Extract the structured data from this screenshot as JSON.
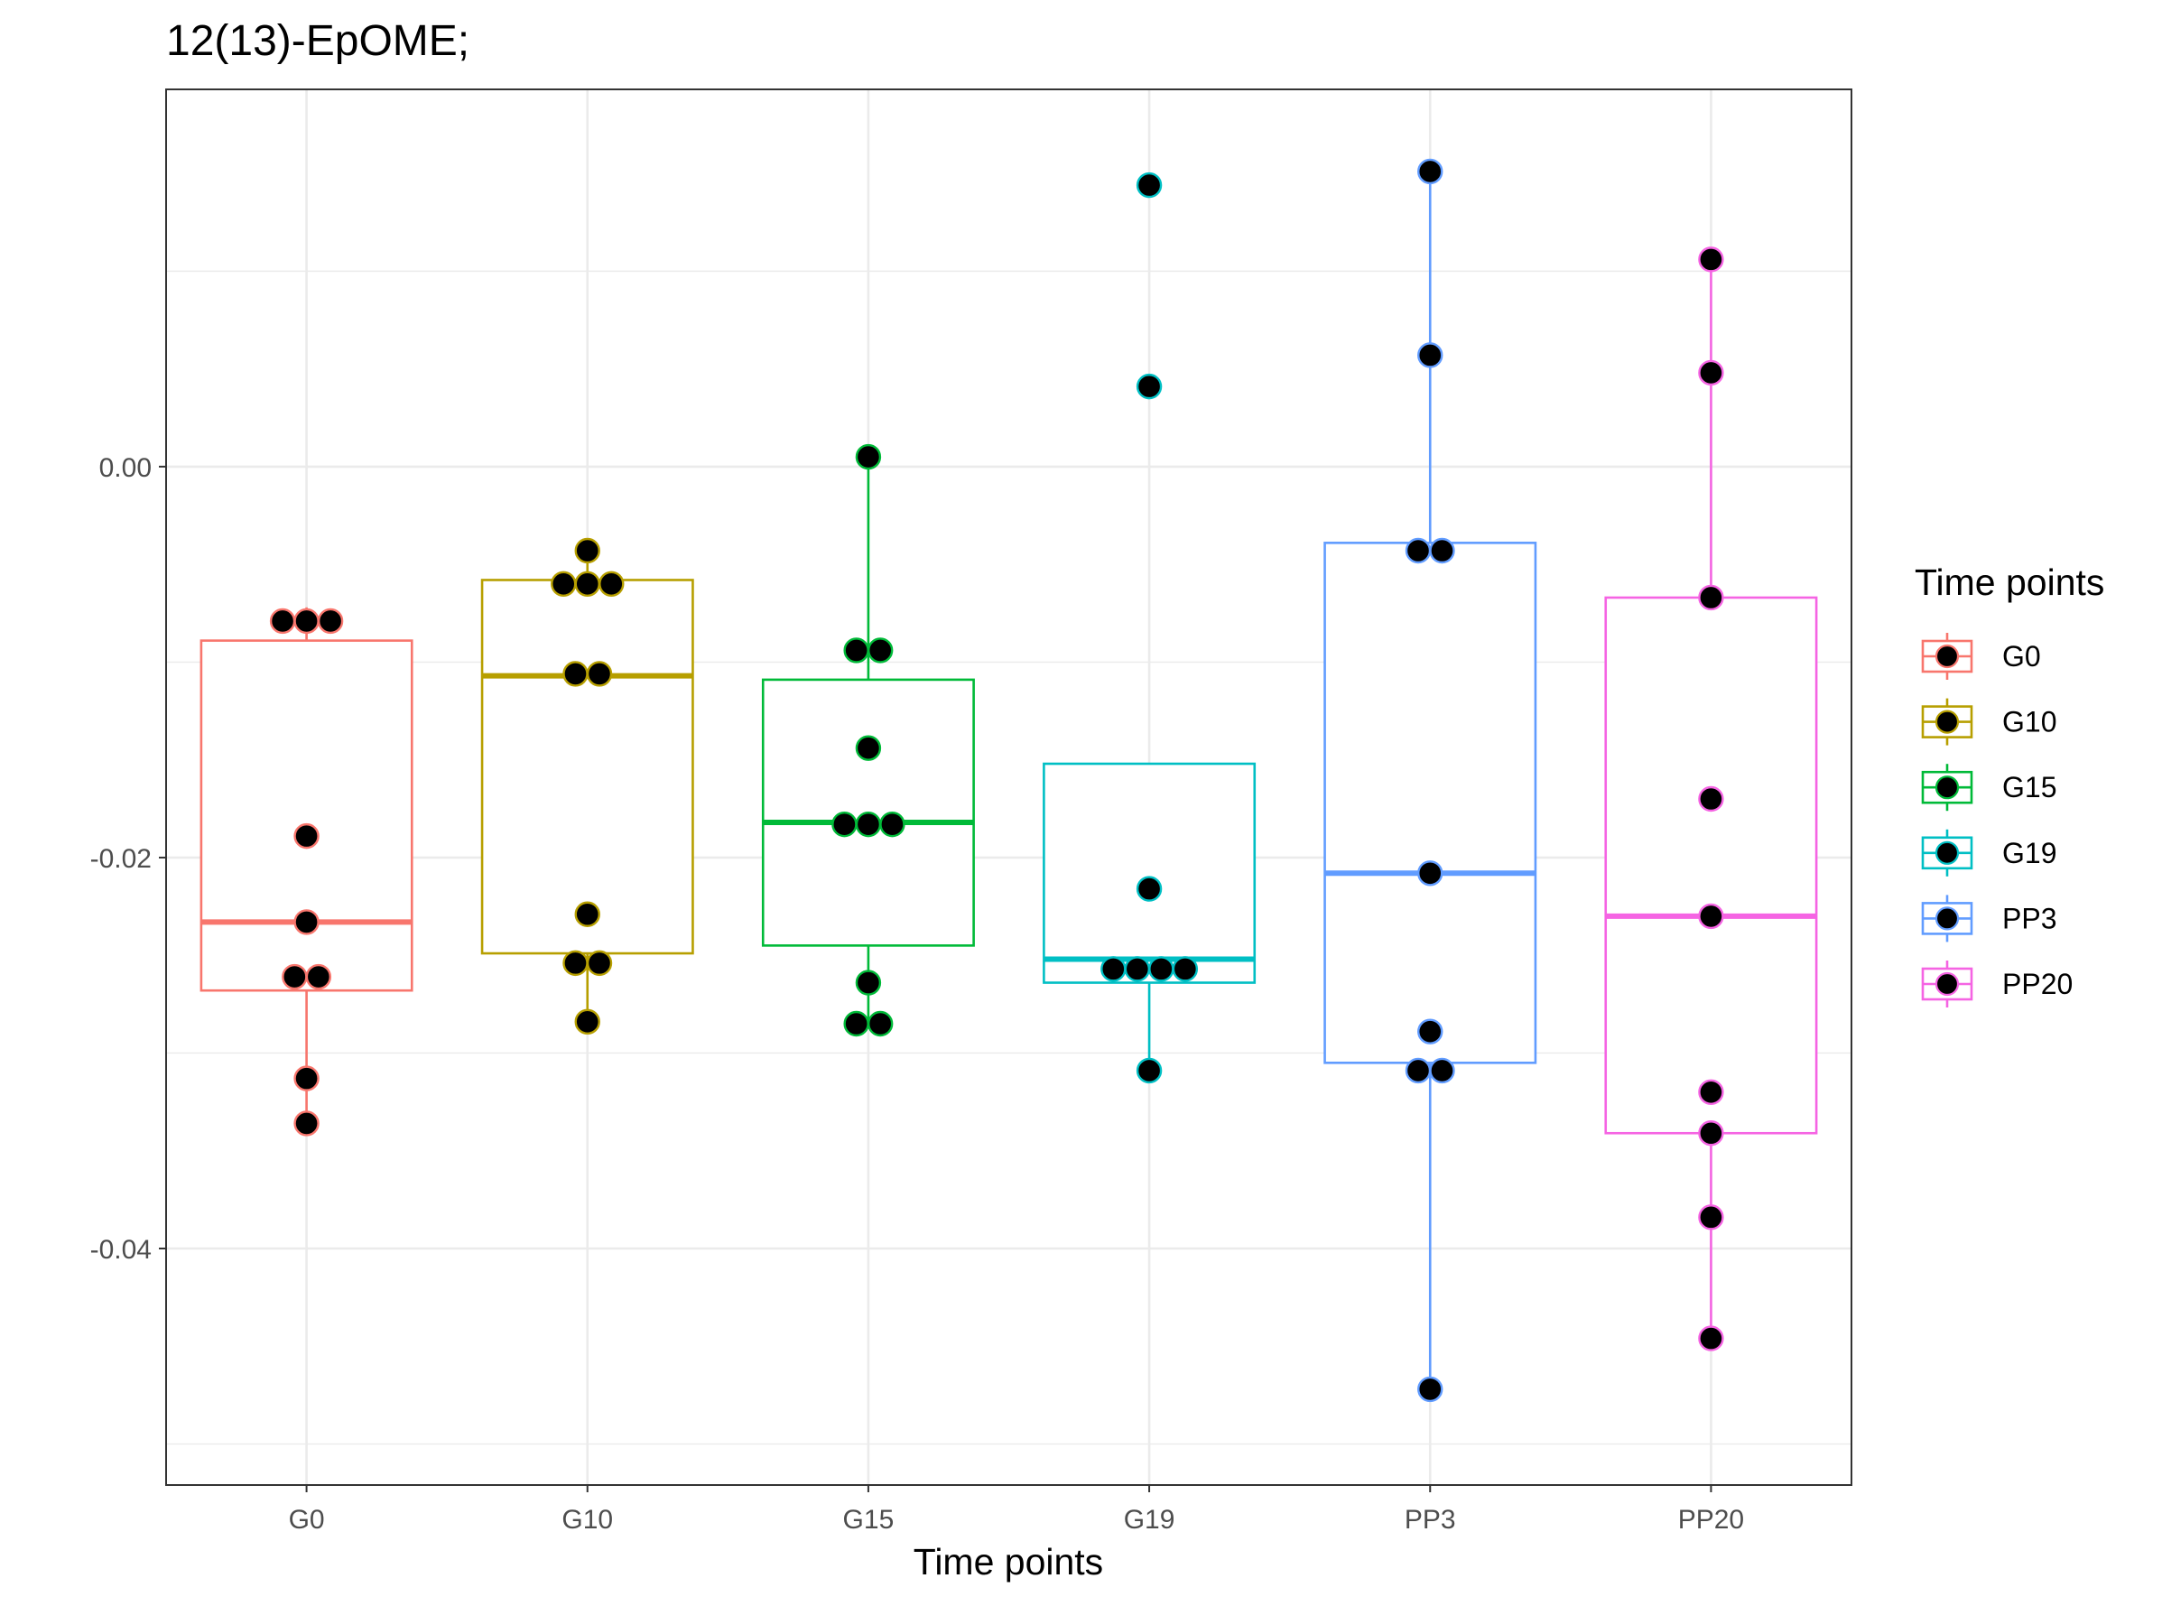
{
  "chart_data": {
    "type": "box",
    "title": "12(13)-EpOME;",
    "xlabel": "Time points",
    "ylabel": "",
    "categories": [
      "G0",
      "G10",
      "G15",
      "G19",
      "PP3",
      "PP20"
    ],
    "ylim": [
      -0.0521,
      0.0193
    ],
    "yticks": [
      0.0,
      -0.02,
      -0.04
    ],
    "ytick_labels": [
      "0.00",
      "-0.02",
      "-0.04"
    ],
    "grid": true,
    "legend": {
      "title": "Time points",
      "position": "right",
      "entries": [
        "G0",
        "G10",
        "G15",
        "G19",
        "PP3",
        "PP20"
      ]
    },
    "colors": {
      "G0": "#F8766D",
      "G10": "#B79F00",
      "G15": "#00BA38",
      "G19": "#00BFC4",
      "PP3": "#619CFF",
      "PP20": "#F564E3"
    },
    "point_color": "#000000",
    "boxes": [
      {
        "category": "G0",
        "whisker_low": -0.0336,
        "q1": -0.0268,
        "median": -0.0233,
        "q3": -0.0089,
        "whisker_high": -0.0072
      },
      {
        "category": "G10",
        "whisker_low": -0.0284,
        "q1": -0.0249,
        "median": -0.0107,
        "q3": -0.0058,
        "whisker_high": -0.0043
      },
      {
        "category": "G15",
        "whisker_low": -0.0285,
        "q1": -0.0245,
        "median": -0.0182,
        "q3": -0.0109,
        "whisker_high": 0.0005
      },
      {
        "category": "G19",
        "whisker_low": -0.0309,
        "q1": -0.0264,
        "median": -0.0252,
        "q3": -0.0152,
        "whisker_high": -0.0152
      },
      {
        "category": "PP3",
        "whisker_low": -0.0472,
        "q1": -0.0305,
        "median": -0.0208,
        "q3": -0.0039,
        "whisker_high": 0.0151
      },
      {
        "category": "PP20",
        "whisker_low": -0.0446,
        "q1": -0.0341,
        "median": -0.023,
        "q3": -0.0067,
        "whisker_high": 0.0106
      }
    ],
    "points": [
      {
        "category": "G0",
        "values": [
          -0.0079,
          -0.0079,
          -0.0079,
          -0.0189,
          -0.0233,
          -0.0261,
          -0.0261,
          -0.0313,
          -0.0336
        ]
      },
      {
        "category": "G10",
        "values": [
          -0.0043,
          -0.006,
          -0.006,
          -0.006,
          -0.0106,
          -0.0106,
          -0.0229,
          -0.0254,
          -0.0254,
          -0.0284
        ]
      },
      {
        "category": "G15",
        "values": [
          0.0005,
          -0.0094,
          -0.0094,
          -0.0144,
          -0.0183,
          -0.0183,
          -0.0183,
          -0.0264,
          -0.0285,
          -0.0285
        ]
      },
      {
        "category": "G19",
        "values": [
          0.0144,
          0.0041,
          -0.0216,
          -0.0257,
          -0.0257,
          -0.0257,
          -0.0257,
          -0.0309
        ]
      },
      {
        "category": "PP3",
        "values": [
          0.0151,
          0.0057,
          -0.0043,
          -0.0043,
          -0.0208,
          -0.0289,
          -0.0309,
          -0.0309,
          -0.0472
        ]
      },
      {
        "category": "PP20",
        "values": [
          0.0106,
          0.0048,
          -0.0067,
          -0.017,
          -0.023,
          -0.032,
          -0.0341,
          -0.0384,
          -0.0446
        ]
      }
    ]
  }
}
